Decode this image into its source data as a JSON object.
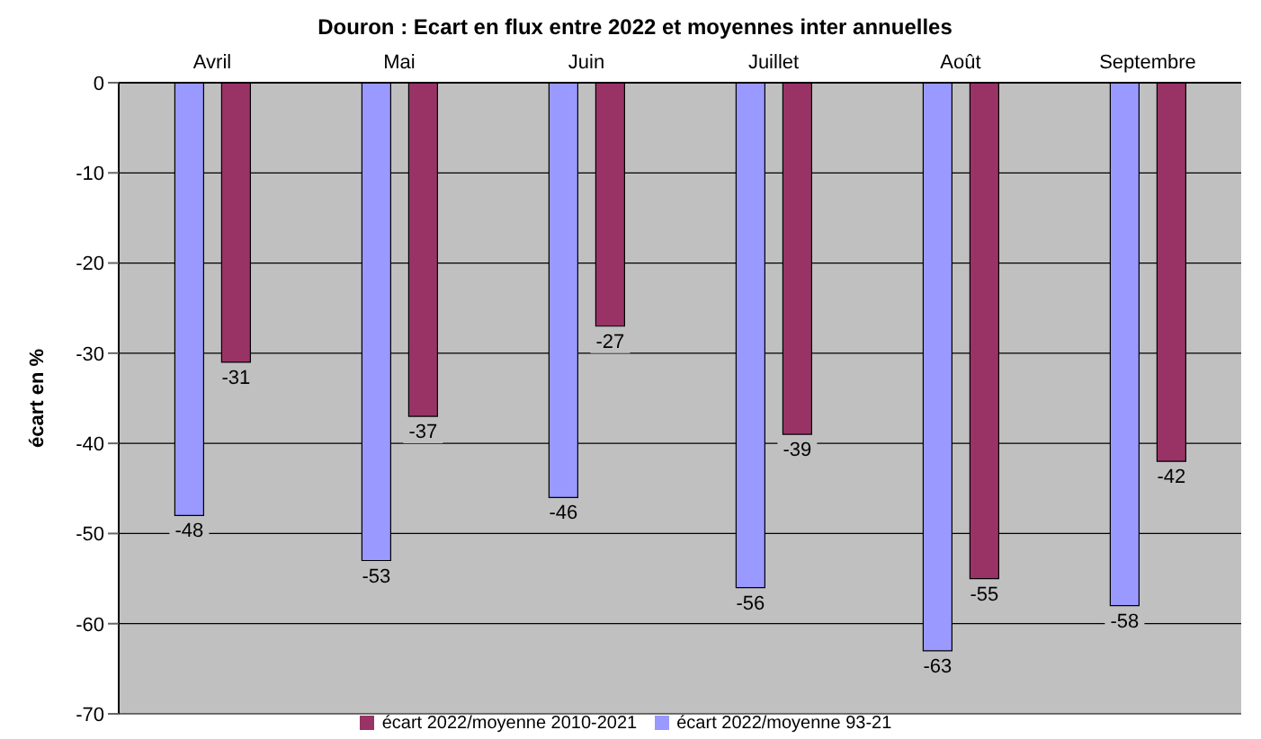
{
  "chart_data": {
    "type": "bar",
    "title": "Douron : Ecart en flux entre 2022 et moyennes inter annuelles",
    "ylabel": "écart en %",
    "categories": [
      "Avril",
      "Mai",
      "Juin",
      "Juillet",
      "Août",
      "Septembre"
    ],
    "series": [
      {
        "name": "écart 2022/moyenne 93-21",
        "color": "#9999ff",
        "values": [
          -48,
          -53,
          -46,
          -56,
          -63,
          -58
        ]
      },
      {
        "name": "écart 2022/moyenne 2010-2021",
        "color": "#993366",
        "values": [
          -31,
          -37,
          -27,
          -39,
          -55,
          -42
        ]
      }
    ],
    "ylim": [
      -70,
      0
    ],
    "yticks": [
      -70,
      -60,
      -50,
      -40,
      -30,
      -20,
      -10,
      0
    ],
    "grid": "y",
    "data_labels": true,
    "legend": "bottom"
  }
}
